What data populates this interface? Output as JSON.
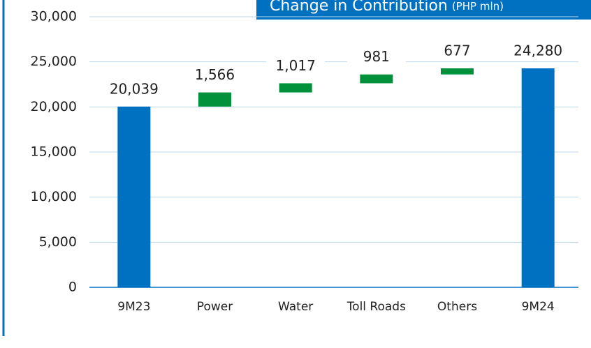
{
  "chart_data": {
    "type": "waterfall",
    "title": "Change in Contribution",
    "unit": "(PHP mln)",
    "categories": [
      "9M23",
      "Power",
      "Water",
      "Toll Roads",
      "Others",
      "9M24"
    ],
    "values": [
      20039,
      1566,
      1017,
      981,
      677,
      24280
    ],
    "value_labels": [
      "20,039",
      "1,566",
      "1,017",
      "981",
      "677",
      "24,280"
    ],
    "measure": [
      "absolute",
      "relative",
      "relative",
      "relative",
      "relative",
      "absolute"
    ],
    "total_color": "#0070c0",
    "increase_color": "#00913a",
    "ylim": [
      0,
      30000
    ],
    "yticks": [
      0,
      {
        "value": 5000,
        "label": "5,000"
      },
      {
        "value": 10000,
        "label": "10,000"
      },
      {
        "value": 15000,
        "label": "15,000"
      },
      {
        "value": 20000,
        "label": "20,000"
      },
      {
        "value": 25000,
        "label": "25,000"
      },
      {
        "value": 30000,
        "label": "30,000"
      }
    ],
    "grid": true
  }
}
